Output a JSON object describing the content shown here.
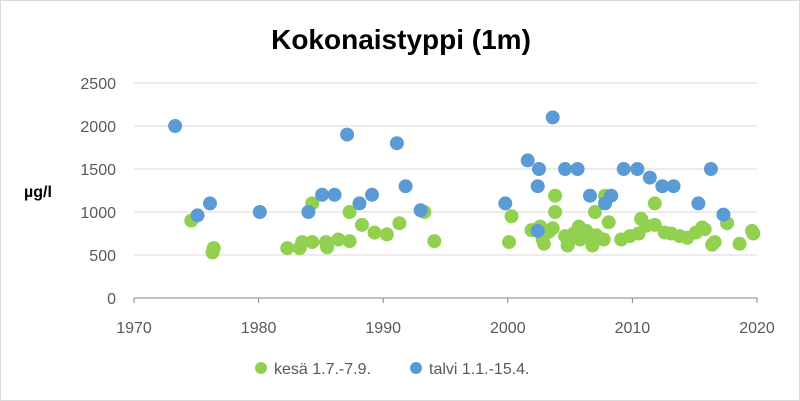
{
  "chart_data": {
    "type": "scatter",
    "title": "Kokonaistyppi (1m)",
    "ylabel": "µg/l",
    "xlabel": "",
    "xlim": [
      1970,
      2020
    ],
    "ylim": [
      0,
      2500
    ],
    "x_ticks": [
      "1970",
      "1980",
      "1990",
      "2000",
      "2010",
      "2020"
    ],
    "y_ticks": [
      "0",
      "500",
      "1000",
      "1500",
      "2000",
      "2500"
    ],
    "grid": true,
    "legend_position": "bottom",
    "series": [
      {
        "name": "kesä 1.7.-7.9.",
        "color": "#92d050",
        "points": [
          [
            1974.6,
            900
          ],
          [
            1976.4,
            580
          ],
          [
            1976.3,
            530
          ],
          [
            1982.3,
            580
          ],
          [
            1983.3,
            580
          ],
          [
            1983.5,
            650
          ],
          [
            1984.3,
            650
          ],
          [
            1984.3,
            1100
          ],
          [
            1985.4,
            650
          ],
          [
            1985.5,
            590
          ],
          [
            1986.4,
            680
          ],
          [
            1987.3,
            660
          ],
          [
            1987.3,
            1000
          ],
          [
            1988.3,
            850
          ],
          [
            1989.3,
            760
          ],
          [
            1990.3,
            740
          ],
          [
            1991.3,
            870
          ],
          [
            1993.3,
            1000
          ],
          [
            1994.1,
            660
          ],
          [
            2000.1,
            650
          ],
          [
            2000.3,
            950
          ],
          [
            2001.9,
            790
          ],
          [
            2002.3,
            800
          ],
          [
            2002.6,
            830
          ],
          [
            2002.8,
            680
          ],
          [
            2002.9,
            630
          ],
          [
            2003.3,
            770
          ],
          [
            2003.6,
            810
          ],
          [
            2003.8,
            1000
          ],
          [
            2003.8,
            1190
          ],
          [
            2004.6,
            720
          ],
          [
            2004.8,
            610
          ],
          [
            2005.1,
            690
          ],
          [
            2005.3,
            750
          ],
          [
            2005.7,
            830
          ],
          [
            2005.8,
            680
          ],
          [
            2006.3,
            780
          ],
          [
            2006.6,
            720
          ],
          [
            2006.8,
            610
          ],
          [
            2007.0,
            1000
          ],
          [
            2007.1,
            730
          ],
          [
            2007.7,
            680
          ],
          [
            2007.8,
            1190
          ],
          [
            2008.1,
            880
          ],
          [
            2009.1,
            680
          ],
          [
            2009.8,
            720
          ],
          [
            2010.5,
            750
          ],
          [
            2010.7,
            920
          ],
          [
            2011.1,
            840
          ],
          [
            2011.8,
            850
          ],
          [
            2011.8,
            1100
          ],
          [
            2012.6,
            760
          ],
          [
            2013.1,
            750
          ],
          [
            2013.8,
            720
          ],
          [
            2014.4,
            700
          ],
          [
            2015.1,
            760
          ],
          [
            2015.6,
            820
          ],
          [
            2015.8,
            800
          ],
          [
            2016.4,
            620
          ],
          [
            2016.6,
            650
          ],
          [
            2017.6,
            870
          ],
          [
            2018.6,
            630
          ],
          [
            2019.6,
            780
          ],
          [
            2019.7,
            750
          ]
        ]
      },
      {
        "name": "talvi 1.1.-15.4.",
        "color": "#5b9bd5",
        "points": [
          [
            1973.3,
            2000
          ],
          [
            1975.1,
            960
          ],
          [
            1976.1,
            1100
          ],
          [
            1980.1,
            1000
          ],
          [
            1984.0,
            1000
          ],
          [
            1985.1,
            1200
          ],
          [
            1986.1,
            1200
          ],
          [
            1987.1,
            1900
          ],
          [
            1988.1,
            1100
          ],
          [
            1989.1,
            1200
          ],
          [
            1991.1,
            1800
          ],
          [
            1991.8,
            1300
          ],
          [
            1993.0,
            1020
          ],
          [
            1999.8,
            1100
          ],
          [
            2001.6,
            1600
          ],
          [
            2002.4,
            1300
          ],
          [
            2002.5,
            1500
          ],
          [
            2002.4,
            780
          ],
          [
            2003.6,
            2100
          ],
          [
            2004.6,
            1500
          ],
          [
            2005.6,
            1500
          ],
          [
            2006.6,
            1190
          ],
          [
            2007.8,
            1100
          ],
          [
            2008.3,
            1190
          ],
          [
            2009.3,
            1500
          ],
          [
            2010.4,
            1500
          ],
          [
            2011.4,
            1400
          ],
          [
            2012.4,
            1300
          ],
          [
            2013.3,
            1300
          ],
          [
            2015.3,
            1100
          ],
          [
            2016.3,
            1500
          ],
          [
            2017.3,
            970
          ]
        ]
      }
    ]
  }
}
